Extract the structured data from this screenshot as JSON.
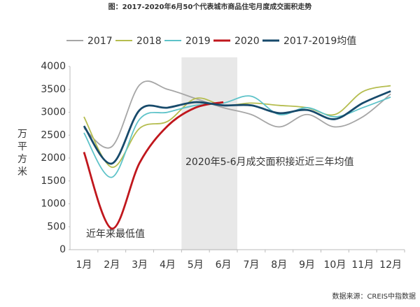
{
  "chart_data": {
    "type": "line",
    "title": "图：2017-2020年6月50个代表城市商品住宅月度成交面积走势",
    "source": "数据来源：CREIS中指数据",
    "y_label": "万平方米",
    "categories": [
      "1月",
      "2月",
      "3月",
      "4月",
      "5月",
      "6月",
      "7月",
      "8月",
      "9月",
      "10月",
      "11月",
      "12月"
    ],
    "series": [
      {
        "name": "2017",
        "color": "#a6a6a6",
        "values": [
          2650,
          2250,
          3600,
          3500,
          3300,
          3100,
          2950,
          2680,
          2950,
          2680,
          2900,
          3400
        ]
      },
      {
        "name": "2018",
        "color": "#b5bd4f",
        "values": [
          2900,
          1800,
          2650,
          2800,
          3300,
          3150,
          3200,
          3150,
          3100,
          2950,
          3450,
          3580
        ]
      },
      {
        "name": "2019",
        "color": "#5ec3c9",
        "values": [
          2550,
          1580,
          2850,
          3000,
          3150,
          3200,
          3350,
          2950,
          3100,
          2900,
          3100,
          3330
        ]
      },
      {
        "name": "2020",
        "color": "#c0171d",
        "values": [
          2130,
          460,
          1900,
          2700,
          3100,
          3220,
          null,
          null,
          null,
          null,
          null,
          null
        ]
      },
      {
        "name": "2017-2019均值",
        "color": "#174a6b",
        "values": [
          2700,
          1880,
          3050,
          3100,
          3220,
          3150,
          3150,
          2980,
          3050,
          2850,
          3200,
          3460
        ]
      }
    ],
    "annotations": [
      "2020年5-6月成交面积接近近三年均值",
      "近年来最低值"
    ],
    "ylim": [
      0,
      4000
    ],
    "yticks": [
      0,
      500,
      1000,
      1500,
      2000,
      2500,
      3000,
      3500,
      4000
    ],
    "grid": false
  }
}
